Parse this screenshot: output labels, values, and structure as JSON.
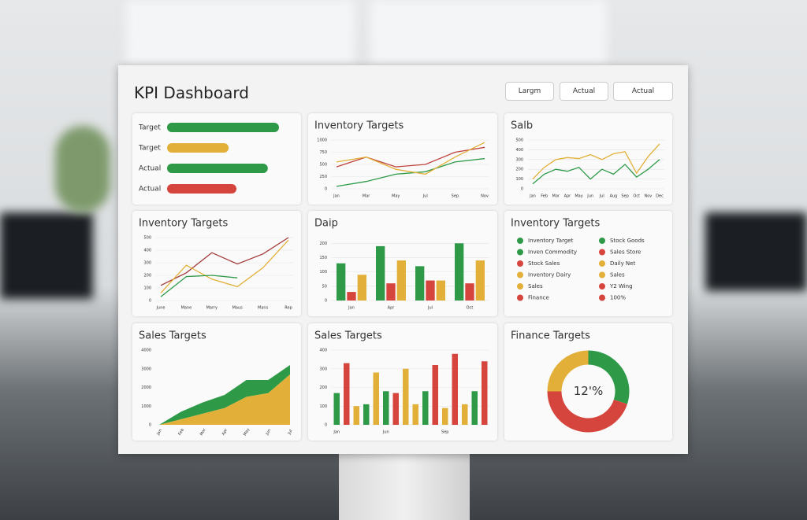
{
  "header": {
    "title": "KPI Dashboard",
    "buttons": [
      "Largm",
      "Actual",
      "Actual"
    ]
  },
  "chart_data": [
    {
      "type": "hbar",
      "categories": [
        "Target",
        "Target",
        "Actual",
        "Actual"
      ],
      "values": [
        100,
        55,
        90,
        62
      ],
      "colors": [
        "#2e9a48",
        "#e2b038",
        "#2e9a48",
        "#d6453d"
      ],
      "xlim": [
        0,
        100
      ]
    },
    {
      "type": "line",
      "title": "Inventory Targets",
      "categories": [
        "Jan",
        "Mar",
        "May",
        "Jul",
        "Sep",
        "Nov"
      ],
      "series": [
        {
          "color": "#2e9a48",
          "values": [
            50,
            150,
            300,
            350,
            550,
            620
          ]
        },
        {
          "color": "#c0443f",
          "values": [
            450,
            650,
            450,
            500,
            750,
            850
          ]
        },
        {
          "color": "#e2b038",
          "values": [
            550,
            650,
            400,
            300,
            650,
            950
          ]
        }
      ],
      "ylim": [
        0,
        1000
      ],
      "yticks": [
        0,
        250,
        500,
        750,
        1000
      ],
      "grid": true
    },
    {
      "type": "line",
      "title": "Salb",
      "categories": [
        "Jan",
        "Feb",
        "Mar",
        "Apr",
        "May",
        "Jun",
        "Jul",
        "Aug",
        "Sep",
        "Oct",
        "Nov",
        "Dec"
      ],
      "series": [
        {
          "color": "#e2b038",
          "values": [
            100,
            220,
            300,
            320,
            310,
            350,
            300,
            360,
            380,
            160,
            330,
            460
          ]
        },
        {
          "color": "#2e9a48",
          "values": [
            50,
            150,
            200,
            180,
            220,
            100,
            200,
            150,
            250,
            120,
            200,
            300
          ]
        }
      ],
      "ylim": [
        0,
        500
      ],
      "yticks": [
        0,
        100,
        200,
        300,
        400,
        500
      ],
      "grid": true
    },
    {
      "type": "line",
      "title": "Inventory Targets",
      "categories": [
        "June",
        "Mane",
        "Marry",
        "Maus",
        "Mans",
        "Rep"
      ],
      "series": [
        {
          "color": "#a33a3a",
          "values": [
            120,
            220,
            380,
            290,
            370,
            500
          ]
        },
        {
          "color": "#e2b038",
          "values": [
            60,
            280,
            170,
            110,
            260,
            480
          ]
        },
        {
          "color": "#2e9a48",
          "values": [
            30,
            190,
            200,
            180,
            null,
            null
          ]
        }
      ],
      "ylim": [
        0,
        500
      ],
      "yticks": [
        0,
        100,
        200,
        300,
        400,
        500
      ],
      "grid": true
    },
    {
      "type": "bar",
      "title": "Daip",
      "categories": [
        "Jan",
        "Apr",
        "Jul",
        "Oct"
      ],
      "series": [
        {
          "color": "#2e9a48",
          "values": [
            130,
            190,
            120,
            200
          ]
        },
        {
          "color": "#d6453d",
          "values": [
            30,
            60,
            70,
            60
          ]
        },
        {
          "color": "#e2b038",
          "values": [
            90,
            140,
            70,
            140
          ]
        }
      ],
      "ylim": [
        0,
        220
      ],
      "yticks": [
        0,
        50,
        100,
        150,
        200
      ],
      "grid": true
    },
    {
      "type": "legend",
      "title": "Inventory Targets",
      "items": [
        {
          "name": "Inventory Target",
          "color": "#2e9a48"
        },
        {
          "name": "Stock Goods",
          "color": "#2e9a48"
        },
        {
          "name": "Inven Commodity",
          "color": "#2e9a48"
        },
        {
          "name": "Sales Store",
          "color": "#d6453d"
        },
        {
          "name": "Stock Sales",
          "color": "#d6453d"
        },
        {
          "name": "Daily Net",
          "color": "#e2b038"
        },
        {
          "name": "Inventory Dairy",
          "color": "#e2b038"
        },
        {
          "name": "Sales",
          "color": "#e2b038"
        },
        {
          "name": "Sales",
          "color": "#e2b038"
        },
        {
          "name": "Y2 Wing",
          "color": "#d6453d"
        },
        {
          "name": "Finance",
          "color": "#d6453d"
        },
        {
          "name": "100%",
          "color": "#d6453d"
        }
      ]
    },
    {
      "type": "area",
      "title": "Sales Targets",
      "categories": [
        "Jan",
        "Feb",
        "Mar",
        "Apr",
        "May",
        "Jun",
        "Jul"
      ],
      "series": [
        {
          "color": "#e2b038",
          "values": [
            0,
            300,
            600,
            900,
            1500,
            1700,
            2700
          ]
        },
        {
          "color": "#2e9a48",
          "values": [
            0,
            400,
            600,
            700,
            900,
            700,
            500
          ]
        }
      ],
      "ylim": [
        0,
        4000
      ],
      "yticks": [
        0,
        1000,
        2000,
        3000,
        4000
      ],
      "grid": false
    },
    {
      "type": "bar",
      "title": "Sales Targets",
      "categories": [
        "Jan",
        null,
        null,
        null,
        null,
        "Jun",
        null,
        null,
        null,
        null,
        null,
        "Sep",
        null,
        null,
        null,
        null
      ],
      "values": [
        170,
        330,
        100,
        110,
        280,
        180,
        170,
        300,
        110,
        180,
        320,
        90,
        380,
        110,
        180,
        340
      ],
      "colors": [
        "#2e9a48",
        "#d6453d",
        "#e2b038",
        "#2e9a48",
        "#e2b038",
        "#2e9a48",
        "#d6453d",
        "#e2b038",
        "#e2b038",
        "#2e9a48",
        "#d6453d",
        "#e2b038",
        "#d6453d",
        "#e2b038",
        "#2e9a48",
        "#d6453d"
      ],
      "ylim": [
        0,
        400
      ],
      "yticks": [
        0,
        100,
        200,
        300,
        400
      ],
      "grid": true
    },
    {
      "type": "pie",
      "title": "Finance Targets",
      "center_label": "12'%",
      "values": [
        30,
        45,
        25
      ],
      "colors": [
        "#2e9a48",
        "#d6453d",
        "#e2b038"
      ]
    }
  ]
}
